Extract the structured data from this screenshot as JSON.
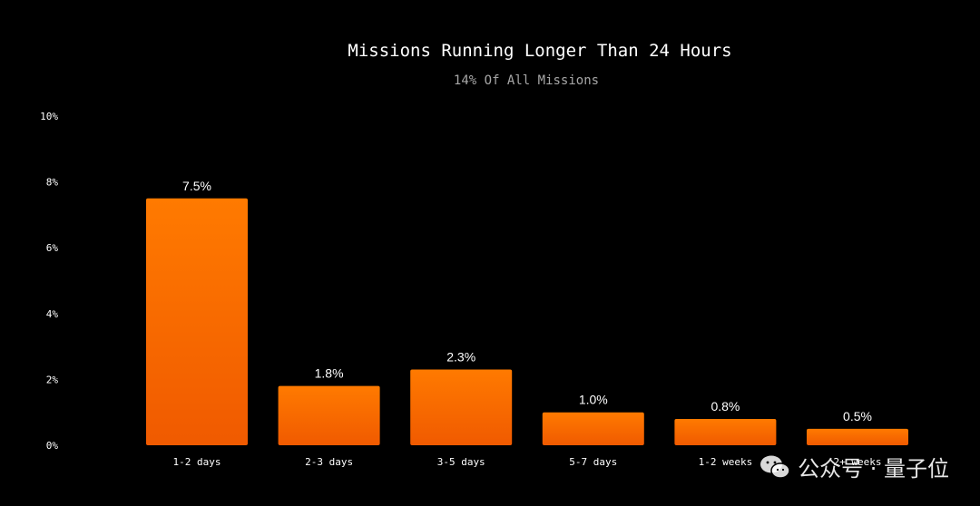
{
  "chart_data": {
    "type": "bar",
    "title": "Missions Running Longer Than 24 Hours",
    "subtitle": "14% Of All Missions",
    "categories": [
      "1-2 days",
      "2-3 days",
      "3-5 days",
      "5-7 days",
      "1-2 weeks",
      "2+ weeks"
    ],
    "values": [
      7.5,
      1.8,
      2.3,
      1.0,
      0.8,
      0.5
    ],
    "value_labels": [
      "7.5%",
      "1.8%",
      "2.3%",
      "1.0%",
      "0.8%",
      "0.5%"
    ],
    "yticks": [
      "0%",
      "2%",
      "4%",
      "6%",
      "8%",
      "10%"
    ],
    "ylim": [
      0,
      10
    ],
    "grid": false,
    "colors": {
      "bar_top": "#ff7a00",
      "bar_bottom": "#f05a00",
      "background": "#000000"
    }
  },
  "watermark": {
    "text": "公众号 · 量子位",
    "icon": "wechat-icon"
  }
}
